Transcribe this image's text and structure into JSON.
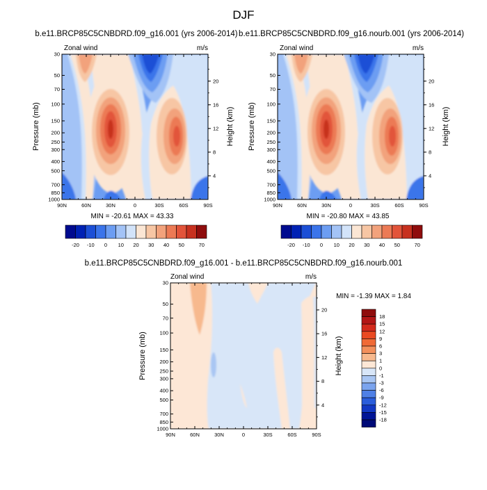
{
  "page_title": "DJF",
  "chart_data": [
    {
      "type": "contour",
      "title": "b.e11.BRCP85C5CNBDRD.f09_g16.001 (yrs 2006-2014)",
      "left_label": "Zonal wind",
      "right_label": "m/s",
      "ylabel": "Pressure (mb)",
      "ylabel_right": "Height (km)",
      "x_ticks": [
        "90N",
        "60N",
        "30N",
        "0",
        "30S",
        "60S",
        "90S"
      ],
      "y_ticks": [
        "30",
        "50",
        "70",
        "100",
        "150",
        "200",
        "250",
        "300",
        "400",
        "500",
        "700",
        "850",
        "1000"
      ],
      "y2_ticks": [
        "20",
        "16",
        "12",
        "8",
        "4"
      ],
      "stats": "MIN = -20.61   MAX =  43.33",
      "min": -20.61,
      "max": 43.33,
      "colorbar_ticks": [
        "-20",
        "-10",
        "0",
        "10",
        "20",
        "30",
        "40",
        "50",
        "70"
      ],
      "colorbar_colors": [
        "#000b8f",
        "#0022b4",
        "#1c4fd6",
        "#3b74ea",
        "#6c9df2",
        "#a3c3f6",
        "#d2e3f9",
        "#fbe6d4",
        "#f7c6a4",
        "#f2a27c",
        "#ec7a55",
        "#e2543a",
        "#c7311f",
        "#8f0d0d"
      ]
    },
    {
      "type": "contour",
      "title": "b.e11.BRCP85C5CNBDRD.f09_g16.nourb.001 (yrs 2006-2014)",
      "left_label": "Zonal wind",
      "right_label": "m/s",
      "ylabel": "Pressure (mb)",
      "ylabel_right": "Height (km)",
      "x_ticks": [
        "90N",
        "60N",
        "30N",
        "0",
        "30S",
        "60S",
        "90S"
      ],
      "y_ticks": [
        "30",
        "50",
        "70",
        "100",
        "150",
        "200",
        "250",
        "300",
        "400",
        "500",
        "700",
        "850",
        "1000"
      ],
      "y2_ticks": [
        "20",
        "16",
        "12",
        "8",
        "4"
      ],
      "stats": "MIN = -20.80   MAX =  43.85",
      "min": -20.8,
      "max": 43.85,
      "colorbar_ticks": [
        "-20",
        "-10",
        "0",
        "10",
        "20",
        "30",
        "40",
        "50",
        "70"
      ],
      "colorbar_colors": [
        "#000b8f",
        "#0022b4",
        "#1c4fd6",
        "#3b74ea",
        "#6c9df2",
        "#a3c3f6",
        "#d2e3f9",
        "#fbe6d4",
        "#f7c6a4",
        "#f2a27c",
        "#ec7a55",
        "#e2543a",
        "#c7311f",
        "#8f0d0d"
      ]
    },
    {
      "type": "contour",
      "title": "b.e11.BRCP85C5CNBDRD.f09_g16.001 - b.e11.BRCP85C5CNBDRD.f09_g16.nourb.001",
      "left_label": "Zonal wind",
      "right_label": "m/s",
      "ylabel": "Pressure (mb)",
      "ylabel_right": "Height (km)",
      "x_ticks": [
        "90N",
        "60N",
        "30N",
        "0",
        "30S",
        "60S",
        "90S"
      ],
      "y_ticks": [
        "30",
        "50",
        "70",
        "100",
        "150",
        "200",
        "250",
        "300",
        "400",
        "500",
        "700",
        "850",
        "1000"
      ],
      "y2_ticks": [
        "20",
        "16",
        "12",
        "8",
        "4"
      ],
      "stats": "MIN =  -1.39  MAX =   1.84",
      "min": -1.39,
      "max": 1.84,
      "colorbar_ticks": [
        "18",
        "15",
        "12",
        "9",
        "6",
        "3",
        "1",
        "0",
        "-1",
        "-3",
        "-6",
        "-9",
        "-12",
        "-15",
        "-18"
      ],
      "colorbar_colors": [
        "#8f0d0d",
        "#b31616",
        "#d32a1c",
        "#ea4a22",
        "#f06a36",
        "#f3905c",
        "#f7b98e",
        "#fde7d6",
        "#d8e6f8",
        "#a9c6f3",
        "#7ba4ee",
        "#4f80e6",
        "#2a5ddb",
        "#1238c4",
        "#001496",
        "#000a78"
      ]
    }
  ]
}
